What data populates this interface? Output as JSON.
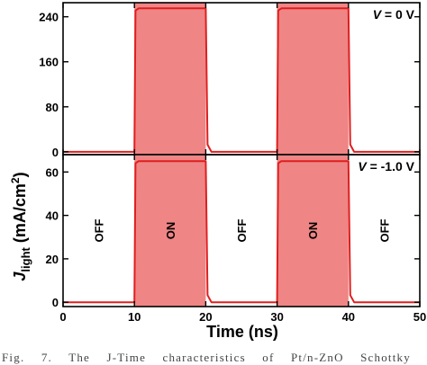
{
  "chart_data": {
    "type": "line",
    "xlabel": "Time (ns)",
    "ylabel": "J",
    "ylabel_sub": "light",
    "ylabel_units": " (mA/cm",
    "ylabel_sup": "2",
    "ylabel_close": ")",
    "xlim": [
      0,
      50
    ],
    "x_ticks": [
      "0",
      "10",
      "20",
      "30",
      "40",
      "50"
    ],
    "on_intervals": [
      [
        10,
        20
      ],
      [
        30,
        40
      ]
    ],
    "state_labels": [
      {
        "x": 5,
        "text": "OFF"
      },
      {
        "x": 15,
        "text": "ON"
      },
      {
        "x": 25,
        "text": "OFF"
      },
      {
        "x": 35,
        "text": "ON"
      },
      {
        "x": 45,
        "text": "OFF"
      }
    ],
    "panels": [
      {
        "annotation_prefix": "V",
        "annotation_value": " = 0 V",
        "ylim": [
          -5,
          265
        ],
        "y_ticks": [
          0,
          80,
          160,
          240
        ],
        "on_level": 255,
        "off_level": 0,
        "show_state_labels": false
      },
      {
        "annotation_prefix": "V",
        "annotation_value": " = -1.0 V",
        "ylim": [
          -2,
          68
        ],
        "y_ticks": [
          0,
          20,
          40,
          60
        ],
        "on_level": 65,
        "off_level": 0,
        "show_state_labels": true
      }
    ],
    "colors": {
      "on_fill": "#ef8585",
      "line": "#e01e1e",
      "axis": "#000000"
    }
  },
  "caption": "Fig. 7. The J-Time characteristics of Pt/n-ZnO Schottky"
}
